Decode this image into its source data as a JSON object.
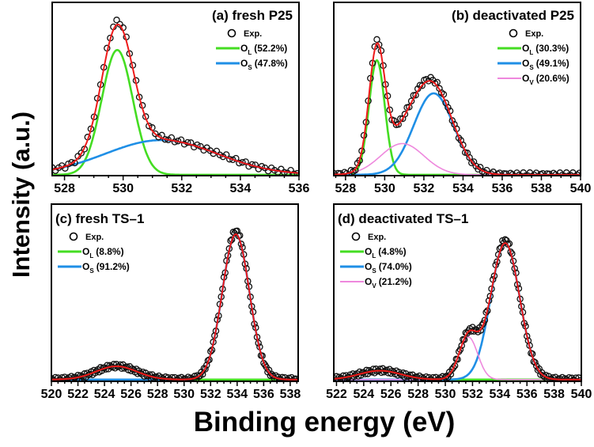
{
  "axes": {
    "ylabel": "Intensity (a.u.)",
    "xlabel": "Binding energy (eV)"
  },
  "colors": {
    "O_L": "#44dd22",
    "O_S": "#1f8fe6",
    "O_V": "#ee88dd",
    "fit": "#ee1a1a",
    "exp": "#111111"
  },
  "chart_data": [
    {
      "type": "line",
      "id": "a",
      "title": "(a) fresh P25",
      "xlim": [
        527.58,
        536.0
      ],
      "ylim": [
        0,
        1.0
      ],
      "xticks": [
        528,
        530,
        532,
        534,
        536
      ],
      "legend_position": "top-right",
      "exp_label": "Exp.",
      "components": [
        {
          "key": "O_L",
          "main": "O",
          "sub": "L",
          "percent": "(52.2%)",
          "center": 529.8,
          "height": 0.72,
          "fwhm": 1.25
        },
        {
          "key": "O_S",
          "main": "O",
          "sub": "S",
          "percent": "(47.8%)",
          "center": 531.3,
          "height": 0.2,
          "fwhm": 4.5
        }
      ]
    },
    {
      "type": "line",
      "id": "b",
      "title": "(b) deactivated P25",
      "xlim": [
        527.4,
        540.0
      ],
      "ylim": [
        0,
        1.0
      ],
      "xticks": [
        528,
        530,
        532,
        534,
        536,
        538,
        540
      ],
      "legend_position": "top-right",
      "exp_label": "Exp.",
      "components": [
        {
          "key": "O_L",
          "main": "O",
          "sub": "L",
          "percent": "(30.3%)",
          "center": 529.6,
          "height": 0.66,
          "fwhm": 0.95
        },
        {
          "key": "O_S",
          "main": "O",
          "sub": "S",
          "percent": "(49.1%)",
          "center": 532.5,
          "height": 0.47,
          "fwhm": 2.4
        },
        {
          "key": "O_V",
          "main": "O",
          "sub": "V",
          "percent": "(20.6%)",
          "center": 530.9,
          "height": 0.18,
          "fwhm": 2.6
        }
      ]
    },
    {
      "type": "line",
      "id": "c",
      "title": "(c) fresh TS–1",
      "xlim": [
        520.0,
        538.6
      ],
      "ylim": [
        0,
        1.0
      ],
      "xticks": [
        520,
        522,
        524,
        526,
        528,
        530,
        532,
        534,
        536,
        538
      ],
      "legend_position": "top-left",
      "exp_label": "Exp.",
      "components": [
        {
          "key": "O_L",
          "main": "O",
          "sub": "L",
          "percent": "(8.8%)",
          "center": 524.9,
          "height": 0.075,
          "fwhm": 3.6
        },
        {
          "key": "O_S",
          "main": "O",
          "sub": "S",
          "percent": "(91.2%)",
          "center": 533.9,
          "height": 0.82,
          "fwhm": 2.4
        }
      ]
    },
    {
      "type": "line",
      "id": "d",
      "title": "(d) deactivated TS–1",
      "xlim": [
        521.8,
        540.0
      ],
      "ylim": [
        0,
        1.0
      ],
      "xticks": [
        522,
        524,
        526,
        528,
        530,
        532,
        534,
        536,
        538,
        540
      ],
      "legend_position": "top-left",
      "exp_label": "Exp.",
      "components": [
        {
          "key": "O_L",
          "main": "O",
          "sub": "L",
          "percent": "(4.8%)",
          "center": 525.2,
          "height": 0.05,
          "fwhm": 3.6
        },
        {
          "key": "O_S",
          "main": "O",
          "sub": "S",
          "percent": "(74.0%)",
          "center": 534.4,
          "height": 0.77,
          "fwhm": 2.5
        },
        {
          "key": "O_V",
          "main": "O",
          "sub": "V",
          "percent": "(21.2%)",
          "center": 531.7,
          "height": 0.24,
          "fwhm": 1.6
        }
      ]
    }
  ]
}
